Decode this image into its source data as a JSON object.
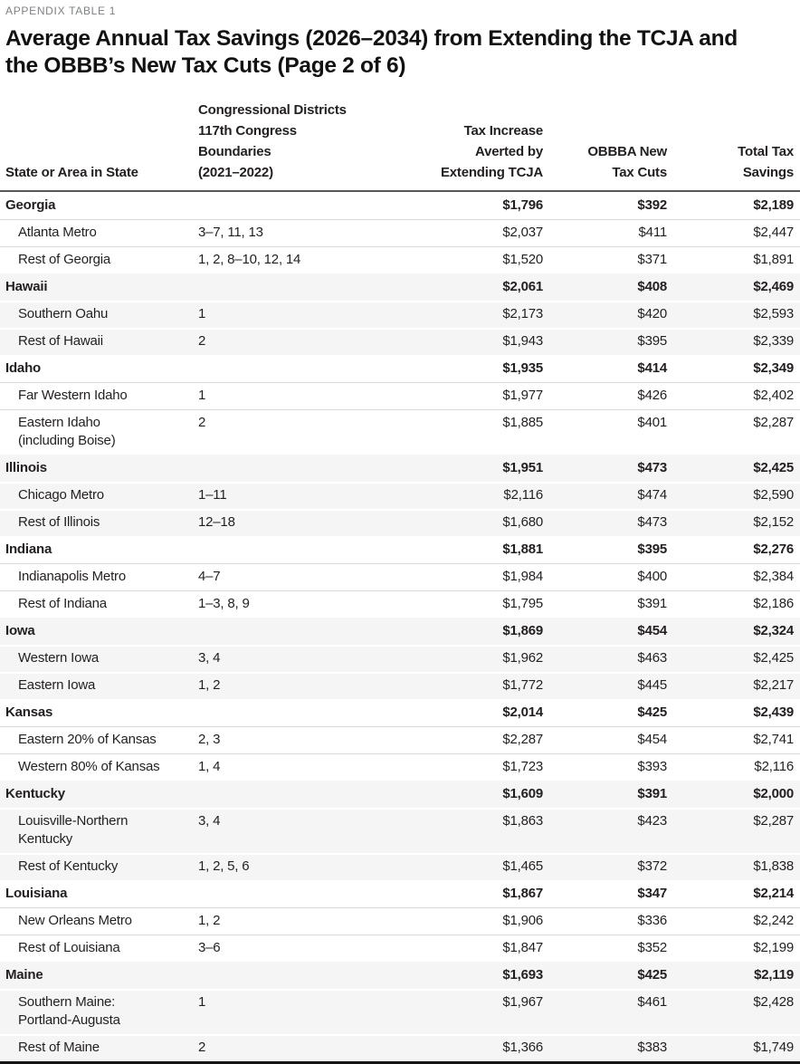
{
  "eyebrow": "APPENDIX TABLE 1",
  "title": "Average Annual Tax Savings (2026–2034) from Extending the TCJA and\nthe OBBB’s New Tax Cuts (Page 2 of 6)",
  "table": {
    "columns": [
      "State or Area in State",
      "Congressional Districts\n117th Congress Boundaries\n(2021–2022)",
      "Tax Increase\nAverted by\nExtending TCJA",
      "OBBBA New\nTax Cuts",
      "Total Tax\nSavings"
    ],
    "groups": [
      {
        "state": "Georgia",
        "tcja": "$1,796",
        "obbba": "$392",
        "total": "$2,189",
        "areas": [
          {
            "name": "Atlanta Metro",
            "districts": "3–7, 11, 13",
            "tcja": "$2,037",
            "obbba": "$411",
            "total": "$2,447"
          },
          {
            "name": "Rest of Georgia",
            "districts": "1, 2, 8–10, 12, 14",
            "tcja": "$1,520",
            "obbba": "$371",
            "total": "$1,891"
          }
        ]
      },
      {
        "state": "Hawaii",
        "tcja": "$2,061",
        "obbba": "$408",
        "total": "$2,469",
        "areas": [
          {
            "name": "Southern Oahu",
            "districts": "1",
            "tcja": "$2,173",
            "obbba": "$420",
            "total": "$2,593"
          },
          {
            "name": "Rest of Hawaii",
            "districts": "2",
            "tcja": "$1,943",
            "obbba": "$395",
            "total": "$2,339"
          }
        ]
      },
      {
        "state": "Idaho",
        "tcja": "$1,935",
        "obbba": "$414",
        "total": "$2,349",
        "areas": [
          {
            "name": "Far Western Idaho",
            "districts": "1",
            "tcja": "$1,977",
            "obbba": "$426",
            "total": "$2,402"
          },
          {
            "name": "Eastern Idaho\n(including Boise)",
            "districts": "2",
            "tcja": "$1,885",
            "obbba": "$401",
            "total": "$2,287",
            "two_line": true
          }
        ]
      },
      {
        "state": "Illinois",
        "tcja": "$1,951",
        "obbba": "$473",
        "total": "$2,425",
        "areas": [
          {
            "name": "Chicago Metro",
            "districts": "1–11",
            "tcja": "$2,116",
            "obbba": "$474",
            "total": "$2,590"
          },
          {
            "name": "Rest of Illinois",
            "districts": "12–18",
            "tcja": "$1,680",
            "obbba": "$473",
            "total": "$2,152"
          }
        ]
      },
      {
        "state": "Indiana",
        "tcja": "$1,881",
        "obbba": "$395",
        "total": "$2,276",
        "areas": [
          {
            "name": "Indianapolis Metro",
            "districts": "4–7",
            "tcja": "$1,984",
            "obbba": "$400",
            "total": "$2,384"
          },
          {
            "name": "Rest of Indiana",
            "districts": "1–3, 8, 9",
            "tcja": "$1,795",
            "obbba": "$391",
            "total": "$2,186"
          }
        ]
      },
      {
        "state": "Iowa",
        "tcja": "$1,869",
        "obbba": "$454",
        "total": "$2,324",
        "areas": [
          {
            "name": "Western Iowa",
            "districts": "3, 4",
            "tcja": "$1,962",
            "obbba": "$463",
            "total": "$2,425"
          },
          {
            "name": "Eastern Iowa",
            "districts": "1, 2",
            "tcja": "$1,772",
            "obbba": "$445",
            "total": "$2,217"
          }
        ]
      },
      {
        "state": "Kansas",
        "tcja": "$2,014",
        "obbba": "$425",
        "total": "$2,439",
        "areas": [
          {
            "name": "Eastern 20% of Kansas",
            "districts": "2, 3",
            "tcja": "$2,287",
            "obbba": "$454",
            "total": "$2,741"
          },
          {
            "name": "Western 80% of Kansas",
            "districts": "1, 4",
            "tcja": "$1,723",
            "obbba": "$393",
            "total": "$2,116"
          }
        ]
      },
      {
        "state": "Kentucky",
        "tcja": "$1,609",
        "obbba": "$391",
        "total": "$2,000",
        "areas": [
          {
            "name": "Louisville-Northern\nKentucky",
            "districts": "3, 4",
            "tcja": "$1,863",
            "obbba": "$423",
            "total": "$2,287",
            "two_line": true
          },
          {
            "name": "Rest of Kentucky",
            "districts": "1, 2, 5, 6",
            "tcja": "$1,465",
            "obbba": "$372",
            "total": "$1,838"
          }
        ]
      },
      {
        "state": "Louisiana",
        "tcja": "$1,867",
        "obbba": "$347",
        "total": "$2,214",
        "areas": [
          {
            "name": "New Orleans Metro",
            "districts": "1, 2",
            "tcja": "$1,906",
            "obbba": "$336",
            "total": "$2,242"
          },
          {
            "name": "Rest of Louisiana",
            "districts": "3–6",
            "tcja": "$1,847",
            "obbba": "$352",
            "total": "$2,199"
          }
        ]
      },
      {
        "state": "Maine",
        "tcja": "$1,693",
        "obbba": "$425",
        "total": "$2,119",
        "areas": [
          {
            "name": "Southern Maine:\nPortland-Augusta",
            "districts": "1",
            "tcja": "$1,967",
            "obbba": "$461",
            "total": "$2,428",
            "two_line": true
          },
          {
            "name": "Rest of Maine",
            "districts": "2",
            "tcja": "$1,366",
            "obbba": "$383",
            "total": "$1,749"
          }
        ]
      }
    ]
  }
}
